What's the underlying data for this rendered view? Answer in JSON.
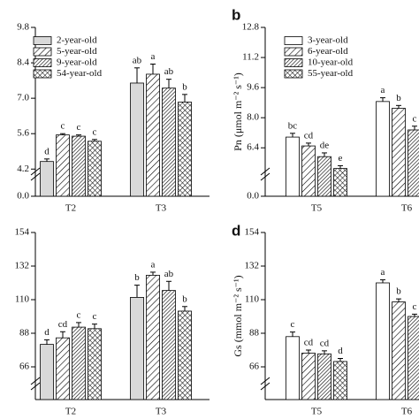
{
  "chart_data": [
    {
      "type": "bar",
      "categories": [
        "T2",
        "T3"
      ],
      "ylim": [
        0,
        9.8
      ],
      "ybreak": 4.0,
      "yticks": [
        {
          "value": 0,
          "label": "0.0"
        },
        4.2,
        5.6,
        {
          "value": 7,
          "label": "7.0"
        },
        8.4,
        9.8
      ],
      "legend": "upper left",
      "series": [
        {
          "name": "2-year-old",
          "color": "#d9d9d9",
          "pattern": "solid",
          "values": [
            4.5,
            7.6
          ],
          "errors": [
            0.1,
            0.6
          ],
          "letters": [
            "d",
            "ab"
          ]
        },
        {
          "name": "5-year-old",
          "color": "#ffffff",
          "pattern": "hatch",
          "values": [
            5.55,
            7.95
          ],
          "errors": [
            0.05,
            0.4
          ],
          "letters": [
            "c",
            "a"
          ]
        },
        {
          "name": "9-year-old",
          "color": "#ffffff",
          "pattern": "dense-hatch",
          "values": [
            5.5,
            7.4
          ],
          "errors": [
            0.05,
            0.35
          ],
          "letters": [
            "c",
            "ab"
          ]
        },
        {
          "name": "54-year-old",
          "color": "#ffffff",
          "pattern": "cross",
          "values": [
            5.3,
            6.85
          ],
          "errors": [
            0.07,
            0.3
          ],
          "letters": [
            "c",
            "b"
          ]
        }
      ]
    },
    {
      "type": "bar",
      "panel": "b",
      "ylabel": "Pn (μmol m⁻² s⁻¹)",
      "categories": [
        "T5",
        "T6"
      ],
      "ylim": [
        0,
        12.8
      ],
      "ybreak": 5.0,
      "yticks": [
        {
          "value": 0,
          "label": "0.0"
        },
        6.4,
        {
          "value": 8,
          "label": "8.0"
        },
        9.6,
        11.2,
        12.8
      ],
      "legend": "upper left",
      "series": [
        {
          "name": "3-year-old",
          "color": "#ffffff",
          "pattern": "solid",
          "values": [
            6.97,
            8.86
          ],
          "errors": [
            0.2,
            0.2
          ],
          "letters": [
            "bc",
            "a"
          ]
        },
        {
          "name": "6-year-old",
          "color": "#ffffff",
          "pattern": "hatch",
          "values": [
            6.5,
            8.5
          ],
          "errors": [
            0.15,
            0.15
          ],
          "letters": [
            "cd",
            "b"
          ]
        },
        {
          "name": "10-year-old",
          "color": "#ffffff",
          "pattern": "dense-hatch",
          "values": [
            5.93,
            7.35
          ],
          "errors": [
            0.2,
            0.2
          ],
          "letters": [
            "de",
            "c"
          ]
        },
        {
          "name": "55-year-old",
          "color": "#ffffff",
          "pattern": "cross",
          "values": [
            5.3,
            null
          ],
          "errors": [
            0.15,
            null
          ],
          "letters": [
            "e",
            null
          ]
        }
      ]
    },
    {
      "type": "bar",
      "categories": [
        "T2",
        "T3"
      ],
      "ylim": [
        0,
        154
      ],
      "ybreak": 55,
      "yticks": [
        66,
        88,
        110,
        132,
        154
      ],
      "series": [
        {
          "name": "2-year-old",
          "color": "#d9d9d9",
          "pattern": "solid",
          "values": [
            80.7,
            111.5
          ],
          "errors": [
            3,
            8
          ],
          "letters": [
            "d",
            "b"
          ]
        },
        {
          "name": "5-year-old",
          "color": "#ffffff",
          "pattern": "hatch",
          "values": [
            85,
            126
          ],
          "errors": [
            4,
            2
          ],
          "letters": [
            "cd",
            "a"
          ]
        },
        {
          "name": "9-year-old",
          "color": "#ffffff",
          "pattern": "dense-hatch",
          "values": [
            92,
            116
          ],
          "errors": [
            3,
            6
          ],
          "letters": [
            "c",
            "ab"
          ]
        },
        {
          "name": "54-year-old",
          "color": "#ffffff",
          "pattern": "cross",
          "values": [
            91,
            102.5
          ],
          "errors": [
            3,
            3
          ],
          "letters": [
            "c",
            "b"
          ]
        }
      ]
    },
    {
      "type": "bar",
      "panel": "d",
      "ylabel": "Gs (mmol m⁻² s⁻¹)",
      "categories": [
        "T5",
        "T6"
      ],
      "ylim": [
        0,
        154
      ],
      "ybreak": 55,
      "yticks": [
        66,
        88,
        110,
        132,
        154
      ],
      "series": [
        {
          "name": "3-year-old",
          "color": "#ffffff",
          "pattern": "solid",
          "values": [
            85.8,
            121
          ],
          "errors": [
            3,
            2
          ],
          "letters": [
            "c",
            "a"
          ]
        },
        {
          "name": "6-year-old",
          "color": "#ffffff",
          "pattern": "hatch",
          "values": [
            75,
            108.5
          ],
          "errors": [
            2,
            2
          ],
          "letters": [
            "cd",
            "b"
          ]
        },
        {
          "name": "10-year-old",
          "color": "#ffffff",
          "pattern": "dense-hatch",
          "values": [
            74.5,
            99
          ],
          "errors": [
            2,
            1.5
          ],
          "letters": [
            "cd",
            "c"
          ]
        },
        {
          "name": "55-year-old",
          "color": "#ffffff",
          "pattern": "cross",
          "values": [
            69.5,
            null
          ],
          "errors": [
            2,
            null
          ],
          "letters": [
            "d",
            null
          ]
        }
      ]
    }
  ]
}
